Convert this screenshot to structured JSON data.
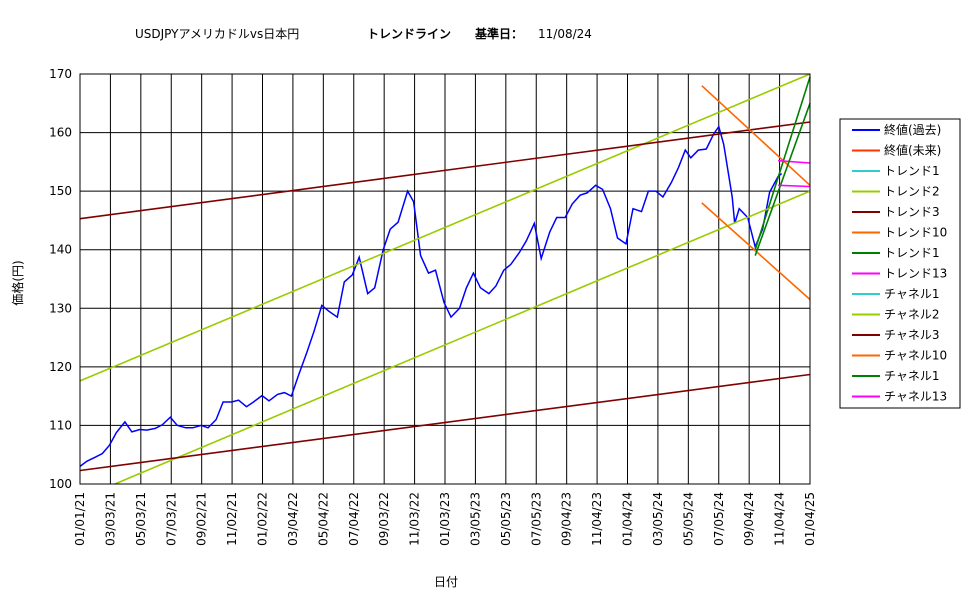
{
  "chart_data": {
    "type": "line",
    "title": "USDJPYアメリカドルvs日本円",
    "subtitle_label": "トレンドライン",
    "base_date_label": "基準日：",
    "base_date": "11/08/24",
    "xlabel": "日付",
    "ylabel": "価格(円)",
    "ylim": [
      100,
      170
    ],
    "yticks": [
      100,
      110,
      120,
      130,
      140,
      150,
      160,
      170
    ],
    "x_range": [
      "01/01/21",
      "01/04/25"
    ],
    "xticks": [
      "01/01/21",
      "03/03/21",
      "05/03/21",
      "07/03/21",
      "09/02/21",
      "11/02/21",
      "01/02/22",
      "03/04/22",
      "05/04/22",
      "07/04/22",
      "09/03/22",
      "11/03/22",
      "01/03/23",
      "03/05/23",
      "05/05/23",
      "07/05/23",
      "09/04/23",
      "11/04/23",
      "01/04/24",
      "03/05/24",
      "05/05/24",
      "07/05/24",
      "09/04/24",
      "11/04/24",
      "01/04/25"
    ],
    "grid": true,
    "legend_position": "right",
    "series": [
      {
        "name": "終値(過去)",
        "color": "#0000ff",
        "kind": "price",
        "points": [
          [
            "01/01/21",
            103.0
          ],
          [
            "01/15/21",
            103.9
          ],
          [
            "02/01/21",
            104.6
          ],
          [
            "02/15/21",
            105.2
          ],
          [
            "03/01/21",
            106.6
          ],
          [
            "03/15/21",
            108.8
          ],
          [
            "04/01/21",
            110.6
          ],
          [
            "04/15/21",
            108.9
          ],
          [
            "05/01/21",
            109.3
          ],
          [
            "05/15/21",
            109.2
          ],
          [
            "06/01/21",
            109.5
          ],
          [
            "06/15/21",
            110.1
          ],
          [
            "07/01/21",
            111.4
          ],
          [
            "07/15/21",
            110.0
          ],
          [
            "08/01/21",
            109.6
          ],
          [
            "08/15/21",
            109.6
          ],
          [
            "09/01/21",
            110.0
          ],
          [
            "09/15/21",
            109.6
          ],
          [
            "10/01/21",
            111.0
          ],
          [
            "10/15/21",
            114.0
          ],
          [
            "11/01/21",
            114.0
          ],
          [
            "11/15/21",
            114.3
          ],
          [
            "12/01/21",
            113.2
          ],
          [
            "12/15/21",
            114.0
          ],
          [
            "01/01/22",
            115.1
          ],
          [
            "01/15/22",
            114.2
          ],
          [
            "02/01/22",
            115.3
          ],
          [
            "02/15/22",
            115.6
          ],
          [
            "03/01/22",
            115.0
          ],
          [
            "03/15/22",
            118.5
          ],
          [
            "04/01/22",
            122.5
          ],
          [
            "04/15/22",
            126.0
          ],
          [
            "05/01/22",
            130.5
          ],
          [
            "05/15/22",
            129.5
          ],
          [
            "06/01/22",
            128.5
          ],
          [
            "06/15/22",
            134.5
          ],
          [
            "07/01/22",
            135.7
          ],
          [
            "07/15/22",
            138.7
          ],
          [
            "08/01/22",
            132.5
          ],
          [
            "08/15/22",
            133.5
          ],
          [
            "09/01/22",
            140.0
          ],
          [
            "09/15/22",
            143.5
          ],
          [
            "10/01/22",
            144.7
          ],
          [
            "10/20/22",
            150.0
          ],
          [
            "11/01/22",
            148.2
          ],
          [
            "11/15/22",
            139.0
          ],
          [
            "12/01/22",
            136.0
          ],
          [
            "12/15/22",
            136.5
          ],
          [
            "01/01/23",
            131.0
          ],
          [
            "01/15/23",
            128.5
          ],
          [
            "02/01/23",
            130.0
          ],
          [
            "02/15/23",
            133.5
          ],
          [
            "03/01/23",
            136.0
          ],
          [
            "03/15/23",
            133.5
          ],
          [
            "04/01/23",
            132.5
          ],
          [
            "04/15/23",
            133.8
          ],
          [
            "05/01/23",
            136.5
          ],
          [
            "05/15/23",
            137.5
          ],
          [
            "06/01/23",
            139.5
          ],
          [
            "06/15/23",
            141.5
          ],
          [
            "07/01/23",
            144.5
          ],
          [
            "07/15/23",
            138.5
          ],
          [
            "08/01/23",
            143.0
          ],
          [
            "08/15/23",
            145.5
          ],
          [
            "09/01/23",
            145.5
          ],
          [
            "09/15/23",
            147.8
          ],
          [
            "10/01/23",
            149.3
          ],
          [
            "10/15/23",
            149.7
          ],
          [
            "11/01/23",
            151.0
          ],
          [
            "11/15/23",
            150.3
          ],
          [
            "12/01/23",
            147.0
          ],
          [
            "12/15/23",
            142.0
          ],
          [
            "01/01/24",
            141.0
          ],
          [
            "01/15/24",
            147.0
          ],
          [
            "02/01/24",
            146.5
          ],
          [
            "02/15/24",
            150.0
          ],
          [
            "03/01/24",
            150.0
          ],
          [
            "03/15/24",
            149.0
          ],
          [
            "04/01/24",
            151.5
          ],
          [
            "04/15/24",
            154.0
          ],
          [
            "04/29/24",
            157.0
          ],
          [
            "05/10/24",
            155.7
          ],
          [
            "05/25/24",
            157.0
          ],
          [
            "06/10/24",
            157.2
          ],
          [
            "06/25/24",
            159.8
          ],
          [
            "07/05/24",
            161.0
          ],
          [
            "07/15/24",
            158.0
          ],
          [
            "08/01/24",
            149.0
          ],
          [
            "08/06/24",
            144.5
          ],
          [
            "08/15/24",
            147.0
          ],
          [
            "09/01/24",
            145.5
          ],
          [
            "09/16/24",
            140.5
          ],
          [
            "10/01/24",
            143.5
          ],
          [
            "10/15/24",
            149.8
          ],
          [
            "11/01/24",
            152.5
          ],
          [
            "11/08/24",
            153.0
          ]
        ]
      },
      {
        "name": "終値(未来)",
        "color": "#ff3300",
        "kind": "future",
        "points": []
      },
      {
        "name": "トレンド1",
        "color": "#33cccc",
        "kind": "line",
        "points": []
      },
      {
        "name": "トレンド2",
        "color": "#99cc00",
        "kind": "line",
        "points": [
          [
            "01/01/21",
            117.6
          ],
          [
            "01/04/25",
            170.0
          ]
        ]
      },
      {
        "name": "トレンド3",
        "color": "#800000",
        "kind": "line",
        "points": [
          [
            "01/01/21",
            145.3
          ],
          [
            "01/04/25",
            161.8
          ]
        ]
      },
      {
        "name": "トレンド10",
        "color": "#ff6600",
        "kind": "line",
        "points": [
          [
            "06/01/24",
            168.0
          ],
          [
            "01/04/25",
            151.0
          ]
        ]
      },
      {
        "name": "トレンド1",
        "color": "#008000",
        "kind": "line",
        "points": [
          [
            "09/16/24",
            140.0
          ],
          [
            "01/04/25",
            169.5
          ]
        ]
      },
      {
        "name": "トレンド13",
        "color": "#ff00ff",
        "kind": "line",
        "points": [
          [
            "11/01/24",
            155.2
          ],
          [
            "01/04/25",
            154.8
          ]
        ]
      },
      {
        "name": "チャネル1",
        "color": "#33cccc",
        "kind": "line",
        "points": []
      },
      {
        "name": "チャネル2",
        "color": "#99cc00",
        "kind": "line",
        "points": [
          [
            "03/12/21",
            100.0
          ],
          [
            "01/04/25",
            150.0
          ]
        ]
      },
      {
        "name": "チャネル3",
        "color": "#800000",
        "kind": "line",
        "points": [
          [
            "01/01/21",
            102.3
          ],
          [
            "01/04/25",
            118.7
          ]
        ]
      },
      {
        "name": "チャネル10",
        "color": "#ff6600",
        "kind": "line",
        "points": [
          [
            "06/01/24",
            148.0
          ],
          [
            "01/04/25",
            131.5
          ]
        ]
      },
      {
        "name": "チャネル1",
        "color": "#008000",
        "kind": "line",
        "points": [
          [
            "09/16/24",
            139.0
          ],
          [
            "01/04/25",
            165.0
          ]
        ]
      },
      {
        "name": "チャネル13",
        "color": "#ff00ff",
        "kind": "line",
        "points": [
          [
            "11/01/24",
            151.0
          ],
          [
            "01/04/25",
            150.8
          ]
        ]
      }
    ]
  }
}
